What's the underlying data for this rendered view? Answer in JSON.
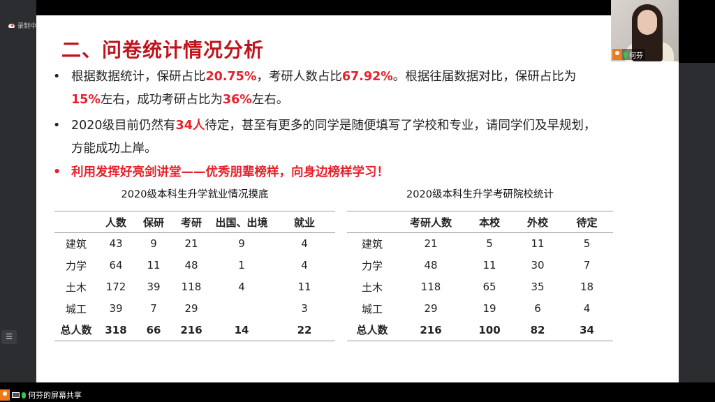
{
  "recording": {
    "label": "录制中",
    "icon": "cloud-record-icon"
  },
  "slide": {
    "title": "二、问卷统计情况分析",
    "bullets": [
      {
        "parts": [
          "根据数据统计，保研占比",
          "20.75%",
          "，考研人数占比",
          "67.92%",
          "。根据往届数据对比，保研占比为"
        ],
        "line2": [
          "15%",
          "左右，成功考研占比为",
          "36%",
          "左右。"
        ]
      },
      {
        "parts": [
          "2020级目前仍然有",
          "34人",
          "待定，甚至有更多的同学是随便填写了学校和专业，请同学们及早规划，"
        ],
        "line2": [
          "方能成功上岸。"
        ]
      },
      {
        "text": "利用发挥好亮剑讲堂——优秀朋辈榜样，向身边榜样学习！"
      }
    ],
    "table1": {
      "title": "2020级本科生升学就业情况摸底",
      "headers": [
        "",
        "人数",
        "保研",
        "考研",
        "出国、出境",
        "就业"
      ],
      "rows": [
        [
          "建筑",
          "43",
          "9",
          "21",
          "9",
          "4"
        ],
        [
          "力学",
          "64",
          "11",
          "48",
          "1",
          "4"
        ],
        [
          "土木",
          "172",
          "39",
          "118",
          "4",
          "11"
        ],
        [
          "城工",
          "39",
          "7",
          "29",
          "",
          "3"
        ]
      ],
      "total": [
        "总人数",
        "318",
        "66",
        "216",
        "14",
        "22"
      ]
    },
    "table2": {
      "title": "2020级本科生升学考研院校统计",
      "headers": [
        "",
        "考研人数",
        "本校",
        "外校",
        "待定"
      ],
      "rows": [
        [
          "建筑",
          "21",
          "5",
          "11",
          "5"
        ],
        [
          "力学",
          "48",
          "11",
          "30",
          "7"
        ],
        [
          "土木",
          "118",
          "65",
          "35",
          "18"
        ],
        [
          "城工",
          "29",
          "19",
          "6",
          "4"
        ]
      ],
      "total": [
        "总人数",
        "216",
        "100",
        "82",
        "34"
      ]
    }
  },
  "camera": {
    "name": "何芬"
  },
  "share_label": "何芬的屏幕共享",
  "colors": {
    "title": "#c0141c",
    "highlight": "#e8202a"
  }
}
